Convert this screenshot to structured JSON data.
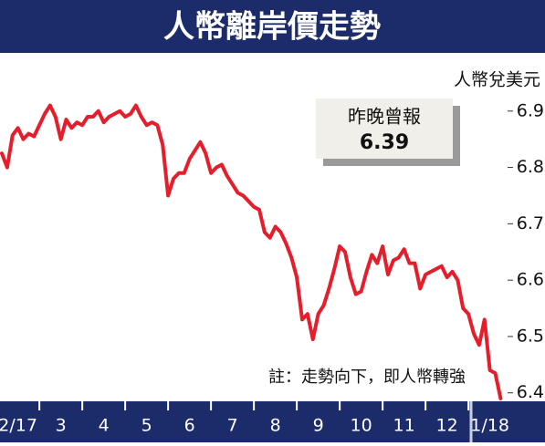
{
  "chart_data": {
    "type": "line",
    "title": "人幣離岸價走勢",
    "y_axis_label": "人幣兌美元",
    "annotation": {
      "title": "昨晚曾報",
      "value": "6.39"
    },
    "note": "註：走勢向下，即人幣轉強",
    "categories": [
      null,
      null,
      null,
      "2/17",
      null,
      null,
      null,
      null,
      null,
      null,
      null,
      "3",
      null,
      null,
      null,
      null,
      null,
      null,
      null,
      "4",
      null,
      null,
      null,
      null,
      null,
      null,
      null,
      "5",
      null,
      null,
      null,
      null,
      null,
      null,
      null,
      "6",
      null,
      null,
      null,
      null,
      null,
      null,
      null,
      "7",
      null,
      null,
      null,
      null,
      null,
      null,
      null,
      "8",
      null,
      null,
      null,
      null,
      null,
      null,
      null,
      "9",
      null,
      null,
      null,
      null,
      null,
      null,
      null,
      "10",
      null,
      null,
      null,
      null,
      null,
      null,
      null,
      "11",
      null,
      null,
      null,
      null,
      null,
      null,
      null,
      "12",
      null,
      null,
      null,
      null,
      null,
      null,
      null,
      "1/18",
      null,
      null
    ],
    "series": [
      {
        "color": "#e61e2b",
        "values": [
          6.825,
          6.8,
          6.857,
          6.87,
          6.85,
          6.86,
          6.855,
          6.875,
          6.895,
          6.91,
          6.89,
          6.85,
          6.885,
          6.87,
          6.88,
          6.875,
          6.89,
          6.89,
          6.9,
          6.88,
          6.89,
          6.895,
          6.9,
          6.89,
          6.895,
          6.91,
          6.89,
          6.875,
          6.88,
          6.875,
          6.84,
          6.75,
          6.78,
          6.79,
          6.79,
          6.815,
          6.83,
          6.845,
          6.825,
          6.79,
          6.8,
          6.805,
          6.785,
          6.77,
          6.755,
          6.75,
          6.74,
          6.73,
          6.725,
          6.685,
          6.675,
          6.695,
          6.685,
          6.665,
          6.64,
          6.605,
          6.53,
          6.54,
          6.495,
          6.54,
          6.555,
          6.585,
          6.62,
          6.66,
          6.65,
          6.605,
          6.575,
          6.58,
          6.615,
          6.645,
          6.63,
          6.66,
          6.61,
          6.635,
          6.64,
          6.655,
          6.63,
          6.63,
          6.585,
          6.61,
          6.615,
          6.62,
          6.625,
          6.605,
          6.615,
          6.6,
          6.55,
          6.54,
          6.505,
          6.485,
          6.53,
          6.44,
          6.435,
          6.39
        ]
      }
    ],
    "ylim": [
      6.385,
      7.0
    ],
    "yticks": [
      6.4,
      6.5,
      6.6,
      6.7,
      6.8,
      6.9
    ],
    "grid": false
  }
}
